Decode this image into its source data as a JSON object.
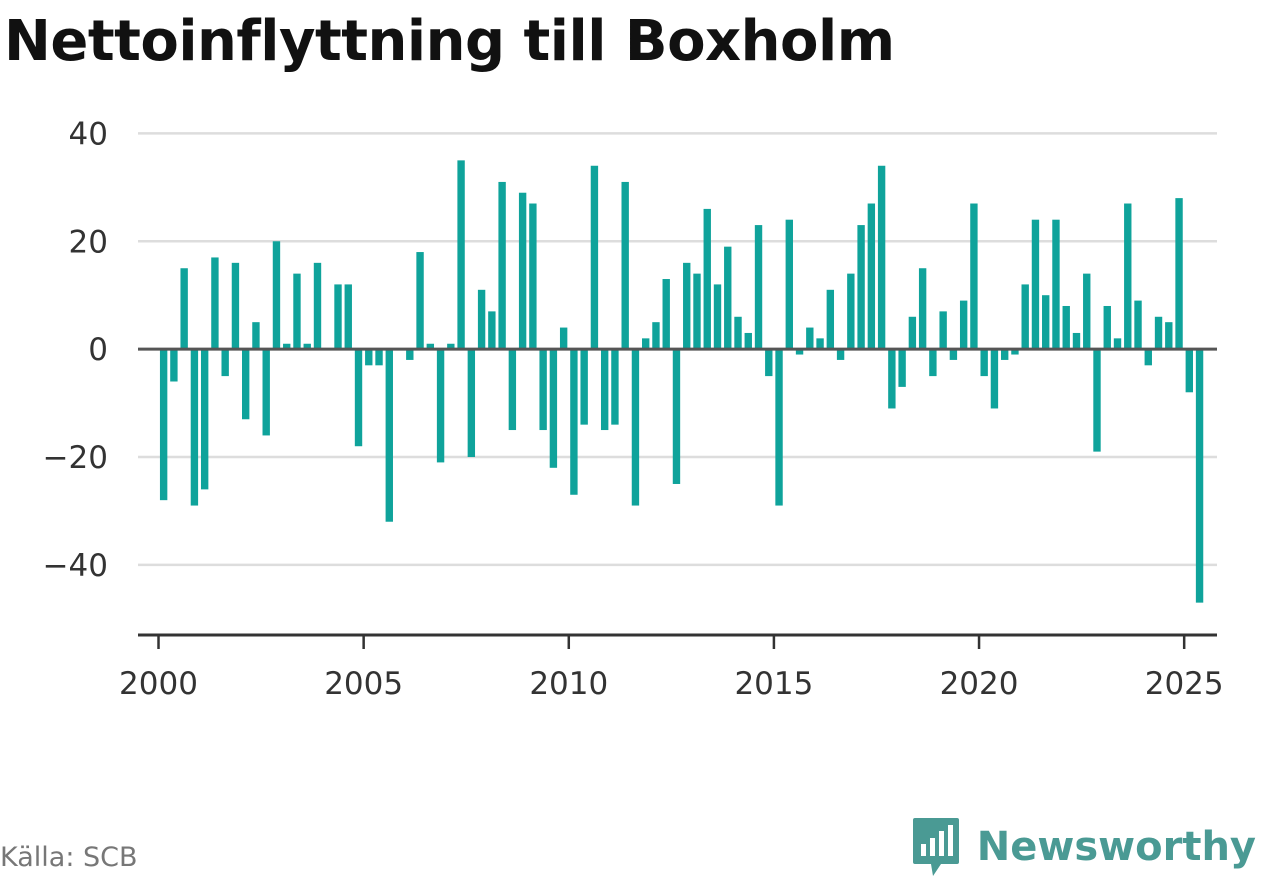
{
  "title": "Nettoinflyttning till Boxholm",
  "source": "Källa: SCB",
  "brand": {
    "name": "Newsworthy",
    "logo_icon": "newsworthy-logo-icon"
  },
  "colors": {
    "bar": "#0fa39b",
    "brand": "#4a9a94"
  },
  "chart_data": {
    "type": "bar",
    "title": "Nettoinflyttning till Boxholm",
    "xlabel": "",
    "ylabel": "",
    "ylim": [
      -53,
      41
    ],
    "xlim": [
      1999.5,
      2025.8
    ],
    "yticks": [
      40,
      20,
      0,
      -20,
      -40
    ],
    "ytick_labels": [
      "40",
      "20",
      "0",
      "−20",
      "−40"
    ],
    "xticks": [
      2000,
      2005,
      2010,
      2015,
      2020,
      2025
    ],
    "xtick_labels": [
      "2000",
      "2005",
      "2010",
      "2015",
      "2020",
      "2025"
    ],
    "grid": true,
    "legend": "none",
    "period": "quarterly, 2000 Q1 – 2025 Q2",
    "values": [
      -28,
      -6,
      15,
      -29,
      -26,
      17,
      -5,
      16,
      -13,
      5,
      -16,
      20,
      1,
      14,
      1,
      16,
      0,
      12,
      12,
      -18,
      -3,
      -3,
      -32,
      0,
      -2,
      18,
      1,
      -21,
      1,
      35,
      -20,
      11,
      7,
      31,
      -15,
      29,
      27,
      -15,
      -22,
      4,
      -27,
      -14,
      34,
      -15,
      -14,
      31,
      -29,
      2,
      5,
      13,
      -25,
      16,
      14,
      26,
      12,
      19,
      6,
      3,
      23,
      -5,
      -29,
      24,
      -1,
      4,
      2,
      11,
      -2,
      14,
      23,
      27,
      34,
      -11,
      -7,
      6,
      15,
      -5,
      7,
      -2,
      9,
      27,
      -5,
      -11,
      -2,
      -1,
      12,
      24,
      10,
      24,
      8,
      3,
      14,
      -19,
      8,
      2,
      27,
      9,
      -3,
      6,
      5,
      28,
      -8,
      -47
    ]
  }
}
